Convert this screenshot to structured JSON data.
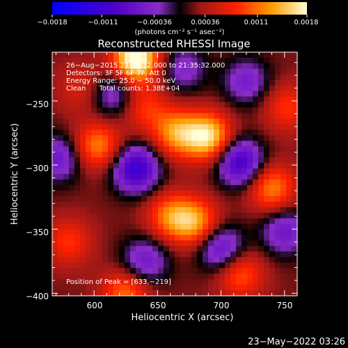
{
  "chart_data": {
    "type": "heatmap",
    "title": "Reconstructed RHESSI Image",
    "xlabel": "Heliocentric X (arcsec)",
    "ylabel": "Heliocentric Y (arcsec)",
    "xlim": [
      567,
      760
    ],
    "ylim": [
      -402,
      -212
    ],
    "x_ticks": [
      600,
      650,
      700,
      750
    ],
    "y_ticks": [
      -250,
      -300,
      -350,
      -400
    ],
    "x_tick_labels": [
      "600",
      "650",
      "700",
      "750"
    ],
    "y_tick_labels": [
      "−250",
      "−300",
      "−350",
      "−400"
    ],
    "colorbar": {
      "min": -0.0018,
      "max": 0.0018,
      "tick_labels": [
        "−0.0018",
        "−0.0011",
        "−0.00036",
        "0.00036",
        "0.0011",
        "0.0018"
      ],
      "unit_text": "(photons cm⁻² s⁻¹ asec⁻²)"
    },
    "annotations": [
      "26−Aug−2015 21:35:32.000 to 21:35:32.000",
      "Detectors: 3F 5F 6F 7F, Att 0",
      "Energy Range: 25.0 − 50.0 keV",
      "Clean      Total counts: 1.38E+04"
    ],
    "peak_label": "Position of Peak = [633,−219]",
    "peak": [
      633,
      -219
    ],
    "sources": [
      {
        "x": 633,
        "y": -217,
        "amp": 1.0
      },
      {
        "x": 690,
        "y": -278,
        "amp": 0.8
      },
      {
        "x": 603,
        "y": -285,
        "amp": 0.55
      },
      {
        "x": 665,
        "y": -275,
        "amp": 0.6
      },
      {
        "x": 680,
        "y": -345,
        "amp": 0.6
      },
      {
        "x": 660,
        "y": -340,
        "amp": 0.5
      },
      {
        "x": 740,
        "y": -318,
        "amp": 0.55
      },
      {
        "x": 625,
        "y": -400,
        "amp": 0.5
      },
      {
        "x": 715,
        "y": -385,
        "amp": 0.45
      },
      {
        "x": 580,
        "y": -360,
        "amp": 0.35
      },
      {
        "x": 752,
        "y": -255,
        "amp": 0.35
      },
      {
        "x": 640,
        "y": -255,
        "amp": 0.35
      },
      {
        "x": 590,
        "y": -240,
        "amp": 0.25
      }
    ],
    "sinks": [
      {
        "x": 633,
        "y": -303,
        "amp": 0.75
      },
      {
        "x": 715,
        "y": -298,
        "amp": 0.7
      },
      {
        "x": 572,
        "y": -295,
        "amp": 0.45
      },
      {
        "x": 615,
        "y": -245,
        "amp": 0.4
      },
      {
        "x": 700,
        "y": -365,
        "amp": 0.55
      },
      {
        "x": 640,
        "y": -375,
        "amp": 0.45
      },
      {
        "x": 750,
        "y": -352,
        "amp": 0.45
      },
      {
        "x": 720,
        "y": -235,
        "amp": 0.4
      },
      {
        "x": 670,
        "y": -225,
        "amp": 0.35
      }
    ]
  },
  "footer": {
    "timestamp": "23−May−2022 03:26"
  }
}
